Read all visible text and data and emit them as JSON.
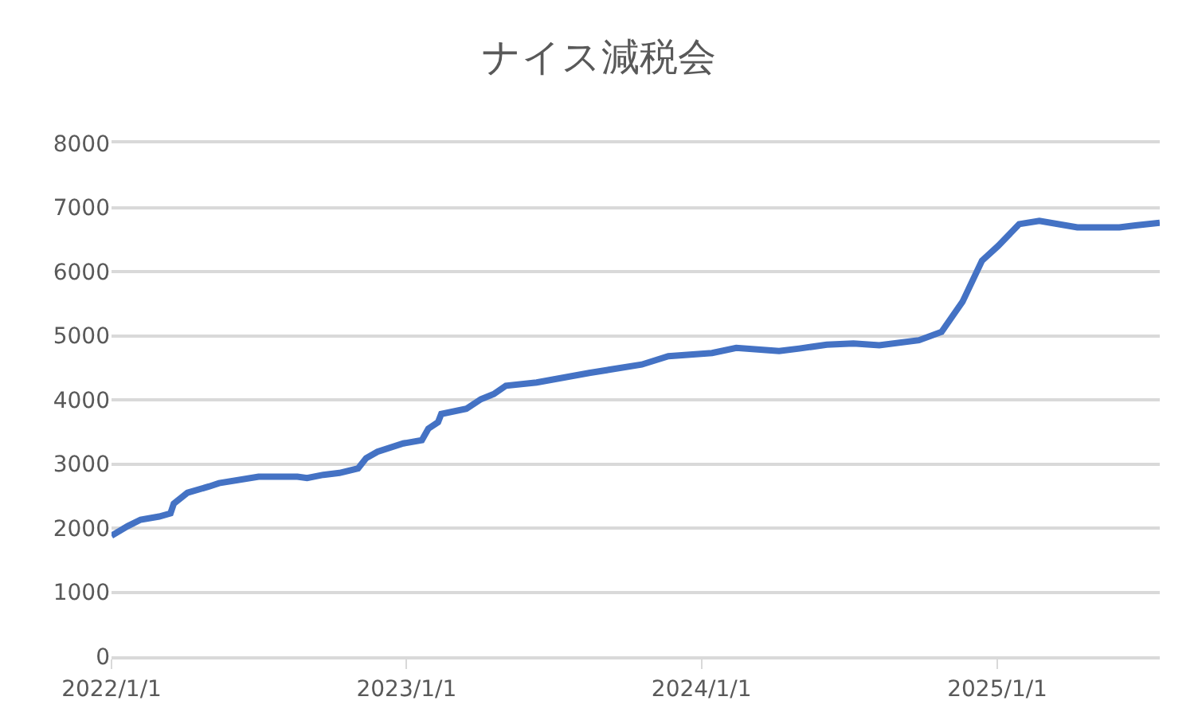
{
  "chart_data": {
    "type": "line",
    "title": "ナイス減税会",
    "x": [
      "2022-01-01",
      "2022-01-21",
      "2022-02-06",
      "2022-03-01",
      "2022-03-15",
      "2022-03-19",
      "2022-04-05",
      "2022-05-02",
      "2022-05-14",
      "2022-07-02",
      "2022-08-19",
      "2022-08-31",
      "2022-09-20",
      "2022-10-10",
      "2022-11-02",
      "2022-11-12",
      "2022-11-26",
      "2022-12-28",
      "2023-01-20",
      "2023-01-28",
      "2023-02-09",
      "2023-02-13",
      "2023-03-16",
      "2023-04-03",
      "2023-04-19",
      "2023-05-04",
      "2023-06-11",
      "2023-08-15",
      "2023-10-19",
      "2023-11-21",
      "2024-01-14",
      "2024-02-13",
      "2024-04-06",
      "2024-05-01",
      "2024-06-04",
      "2024-07-07",
      "2024-08-08",
      "2024-09-26",
      "2024-10-24",
      "2024-11-19",
      "2024-12-13",
      "2025-01-02",
      "2025-01-28",
      "2025-02-22",
      "2025-04-10",
      "2025-06-01",
      "2025-06-21",
      "2025-07-21"
    ],
    "series": [
      {
        "color": "#4472c4",
        "values": [
          1880,
          2030,
          2130,
          2180,
          2230,
          2380,
          2550,
          2650,
          2700,
          2800,
          2800,
          2780,
          2830,
          2860,
          2930,
          3090,
          3190,
          3320,
          3370,
          3550,
          3650,
          3780,
          3860,
          4010,
          4090,
          4220,
          4270,
          4420,
          4550,
          4680,
          4730,
          4810,
          4760,
          4800,
          4860,
          4880,
          4850,
          4930,
          5060,
          5530,
          6170,
          6400,
          6740,
          6790,
          6690,
          6690,
          6720,
          6760
        ]
      }
    ],
    "xlim": [
      "2022-01-01",
      "2025-07-21"
    ],
    "xticks": [
      {
        "value": "2022-01-01",
        "label": "2022/1/1"
      },
      {
        "value": "2023-01-01",
        "label": "2023/1/1"
      },
      {
        "value": "2024-01-01",
        "label": "2024/1/1"
      },
      {
        "value": "2025-01-01",
        "label": "2025/1/1"
      }
    ],
    "ylim": [
      0,
      8000
    ],
    "yticks": [
      0,
      1000,
      2000,
      3000,
      4000,
      5000,
      6000,
      7000,
      8000
    ],
    "grid": "y",
    "marker": "none",
    "line_style": "solid"
  }
}
